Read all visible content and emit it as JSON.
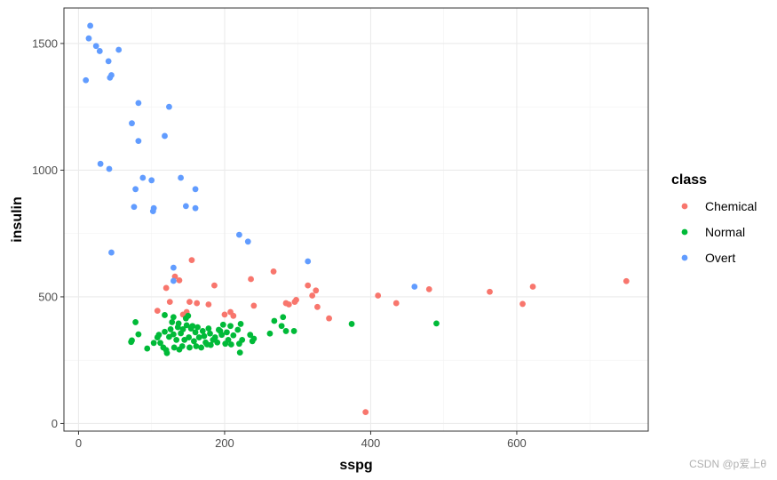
{
  "watermark": "CSDN @p爱上θ",
  "chart_data": {
    "type": "scatter",
    "title": "",
    "xlabel": "sspg",
    "ylabel": "insulin",
    "xlim": [
      -20,
      780
    ],
    "ylim": [
      -30,
      1640
    ],
    "x_ticks": [
      0,
      200,
      400,
      600
    ],
    "y_ticks": [
      0,
      500,
      1000,
      1500
    ],
    "grid": true,
    "legend": {
      "title": "class",
      "position": "right"
    },
    "series": [
      {
        "name": "Chemical",
        "color": "#F8766D",
        "points": [
          [
            108,
            445
          ],
          [
            120,
            535
          ],
          [
            125,
            480
          ],
          [
            132,
            580
          ],
          [
            138,
            565
          ],
          [
            143,
            430
          ],
          [
            148,
            440
          ],
          [
            152,
            480
          ],
          [
            155,
            645
          ],
          [
            162,
            475
          ],
          [
            178,
            470
          ],
          [
            186,
            545
          ],
          [
            200,
            430
          ],
          [
            208,
            440
          ],
          [
            212,
            425
          ],
          [
            236,
            570
          ],
          [
            240,
            465
          ],
          [
            267,
            600
          ],
          [
            284,
            475
          ],
          [
            288,
            470
          ],
          [
            296,
            480
          ],
          [
            298,
            488
          ],
          [
            314,
            545
          ],
          [
            320,
            505
          ],
          [
            325,
            525
          ],
          [
            327,
            460
          ],
          [
            343,
            415
          ],
          [
            393,
            45
          ],
          [
            410,
            505
          ],
          [
            435,
            475
          ],
          [
            480,
            530
          ],
          [
            563,
            520
          ],
          [
            608,
            472
          ],
          [
            622,
            540
          ],
          [
            750,
            562
          ]
        ]
      },
      {
        "name": "Normal",
        "color": "#00BA38",
        "points": [
          [
            72,
            322
          ],
          [
            73,
            328
          ],
          [
            78,
            400
          ],
          [
            82,
            352
          ],
          [
            94,
            296
          ],
          [
            103,
            318
          ],
          [
            108,
            340
          ],
          [
            110,
            350
          ],
          [
            112,
            318
          ],
          [
            116,
            300
          ],
          [
            118,
            362
          ],
          [
            118,
            428
          ],
          [
            120,
            290
          ],
          [
            121,
            278
          ],
          [
            124,
            342
          ],
          [
            126,
            372
          ],
          [
            128,
            400
          ],
          [
            130,
            352
          ],
          [
            130,
            420
          ],
          [
            131,
            300
          ],
          [
            134,
            330
          ],
          [
            136,
            380
          ],
          [
            137,
            395
          ],
          [
            138,
            292
          ],
          [
            140,
            356
          ],
          [
            142,
            305
          ],
          [
            143,
            372
          ],
          [
            145,
            330
          ],
          [
            147,
            415
          ],
          [
            148,
            388
          ],
          [
            150,
            425
          ],
          [
            151,
            340
          ],
          [
            152,
            300
          ],
          [
            154,
            375
          ],
          [
            156,
            385
          ],
          [
            158,
            325
          ],
          [
            160,
            360
          ],
          [
            161,
            305
          ],
          [
            163,
            380
          ],
          [
            165,
            340
          ],
          [
            168,
            300
          ],
          [
            170,
            365
          ],
          [
            172,
            345
          ],
          [
            174,
            320
          ],
          [
            176,
            312
          ],
          [
            178,
            375
          ],
          [
            180,
            355
          ],
          [
            181,
            310
          ],
          [
            184,
            330
          ],
          [
            187,
            340
          ],
          [
            190,
            320
          ],
          [
            192,
            370
          ],
          [
            194,
            365
          ],
          [
            196,
            350
          ],
          [
            198,
            390
          ],
          [
            201,
            315
          ],
          [
            203,
            360
          ],
          [
            205,
            330
          ],
          [
            208,
            385
          ],
          [
            209,
            312
          ],
          [
            212,
            348
          ],
          [
            218,
            370
          ],
          [
            220,
            315
          ],
          [
            221,
            280
          ],
          [
            222,
            393
          ],
          [
            224,
            330
          ],
          [
            235,
            350
          ],
          [
            238,
            325
          ],
          [
            240,
            335
          ],
          [
            262,
            355
          ],
          [
            268,
            405
          ],
          [
            278,
            385
          ],
          [
            280,
            420
          ],
          [
            284,
            365
          ],
          [
            295,
            365
          ],
          [
            374,
            393
          ],
          [
            490,
            395
          ]
        ]
      },
      {
        "name": "Overt",
        "color": "#619CFF",
        "points": [
          [
            10,
            1355
          ],
          [
            14,
            1520
          ],
          [
            16,
            1570
          ],
          [
            24,
            1490
          ],
          [
            29,
            1470
          ],
          [
            30,
            1025
          ],
          [
            41,
            1430
          ],
          [
            42,
            1005
          ],
          [
            43,
            1365
          ],
          [
            45,
            1375
          ],
          [
            45,
            675
          ],
          [
            55,
            1475
          ],
          [
            73,
            1185
          ],
          [
            76,
            855
          ],
          [
            78,
            925
          ],
          [
            82,
            1115
          ],
          [
            82,
            1265
          ],
          [
            88,
            970
          ],
          [
            100,
            960
          ],
          [
            102,
            838
          ],
          [
            103,
            850
          ],
          [
            118,
            1135
          ],
          [
            124,
            1250
          ],
          [
            130,
            615
          ],
          [
            130,
            563
          ],
          [
            140,
            970
          ],
          [
            147,
            858
          ],
          [
            160,
            925
          ],
          [
            160,
            850
          ],
          [
            220,
            745
          ],
          [
            232,
            718
          ],
          [
            314,
            640
          ],
          [
            460,
            540
          ]
        ]
      }
    ]
  }
}
